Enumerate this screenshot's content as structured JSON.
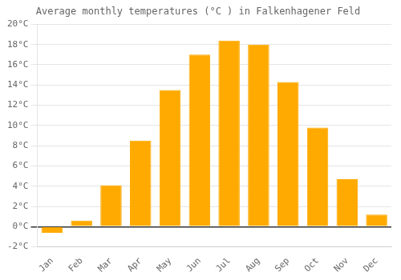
{
  "chart_data": {
    "type": "bar",
    "title": "Average monthly temperatures (°C ) in Falkenhagener Feld",
    "categories": [
      "Jan",
      "Feb",
      "Mar",
      "Apr",
      "May",
      "Jun",
      "Jul",
      "Aug",
      "Sep",
      "Oct",
      "Nov",
      "Dec"
    ],
    "values": [
      -0.6,
      0.6,
      4.1,
      8.5,
      13.5,
      17.0,
      18.4,
      18.0,
      14.3,
      9.8,
      4.7,
      1.2
    ],
    "color": "#FFAA00",
    "ylim": [
      -2,
      20
    ],
    "yticks": [
      {
        "value": -2,
        "label": "-2°C"
      },
      {
        "value": 0,
        "label": "0°C"
      },
      {
        "value": 2,
        "label": "2°C"
      },
      {
        "value": 4,
        "label": "4°C"
      },
      {
        "value": 6,
        "label": "6°C"
      },
      {
        "value": 8,
        "label": "8°C"
      },
      {
        "value": 10,
        "label": "10°C"
      },
      {
        "value": 12,
        "label": "12°C"
      },
      {
        "value": 14,
        "label": "14°C"
      },
      {
        "value": 16,
        "label": "16°C"
      },
      {
        "value": 18,
        "label": "18°C"
      },
      {
        "value": 20,
        "label": "20°C"
      }
    ],
    "grid": true
  }
}
